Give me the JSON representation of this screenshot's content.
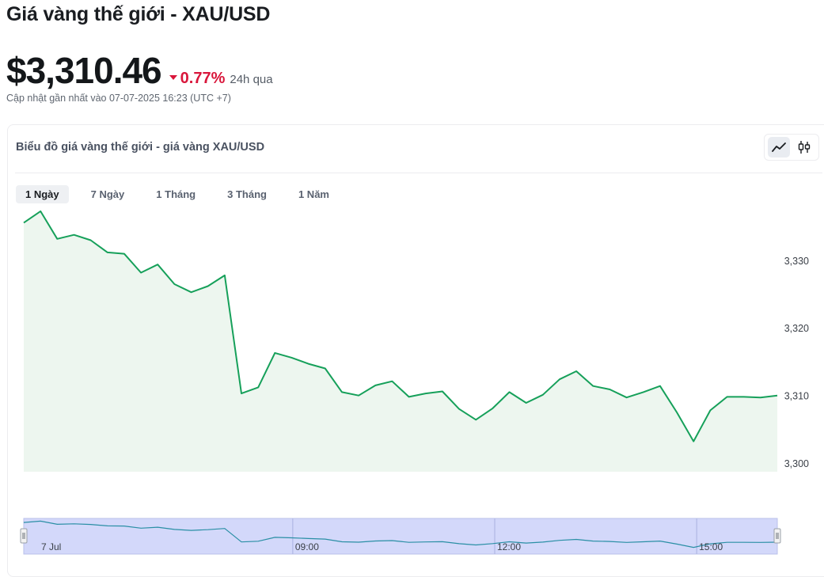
{
  "page": {
    "title": "Giá vàng thế giới - XAU/USD",
    "price": "$3,310.46",
    "change": "0.77%",
    "change_period": "24h qua",
    "updated": "Cập nhật gần nhất vào 07-07-2025 16:23 (UTC +7)"
  },
  "card": {
    "title": "Biểu đồ giá vàng thế giới - giá vàng XAU/USD",
    "chart_type_buttons": [
      {
        "icon": "line-chart-icon",
        "active": true
      },
      {
        "icon": "candlestick-chart-icon",
        "active": false
      }
    ],
    "tabs": [
      {
        "label": "1 Ngày",
        "active": true
      },
      {
        "label": "7 Ngày",
        "active": false
      },
      {
        "label": "1 Tháng",
        "active": false
      },
      {
        "label": "3 Tháng",
        "active": false
      },
      {
        "label": "1 Năm",
        "active": false
      }
    ]
  },
  "colors": {
    "line": "#16a05a",
    "area": "#edf6ef",
    "negative": "#d9163b",
    "navigator_fill": "#d3d8fa",
    "navigator_line": "#2a8fa5"
  },
  "chart_data": {
    "type": "area",
    "title": "",
    "xlabel": "",
    "ylabel": "",
    "ylim": [
      3298.8,
      3336.8
    ],
    "y_ticks": [
      "3,300",
      "3,310",
      "3,320",
      "3,330"
    ],
    "y_tick_values": [
      3300,
      3310,
      3320,
      3330
    ],
    "y_axis_position": "right",
    "grid": false,
    "legend": "none",
    "navigator_labels": [
      "7 Jul",
      "09:00",
      "12:00",
      "15:00"
    ],
    "series": [
      {
        "values": [
          3335.7,
          3337.4,
          3333.3,
          3333.9,
          3333.1,
          3331.3,
          3331.1,
          3328.3,
          3329.5,
          3326.6,
          3325.4,
          3326.3,
          3327.9,
          3310.4,
          3311.3,
          3316.4,
          3315.7,
          3314.8,
          3314.1,
          3310.6,
          3310.1,
          3311.6,
          3312.2,
          3309.9,
          3310.4,
          3310.7,
          3308.1,
          3306.5,
          3308.2,
          3310.6,
          3309.0,
          3310.2,
          3312.5,
          3313.7,
          3311.5,
          3311.0,
          3309.8,
          3310.6,
          3311.5,
          3307.6,
          3303.3,
          3307.9,
          3309.9,
          3309.9,
          3309.8,
          3310.1
        ]
      }
    ]
  }
}
